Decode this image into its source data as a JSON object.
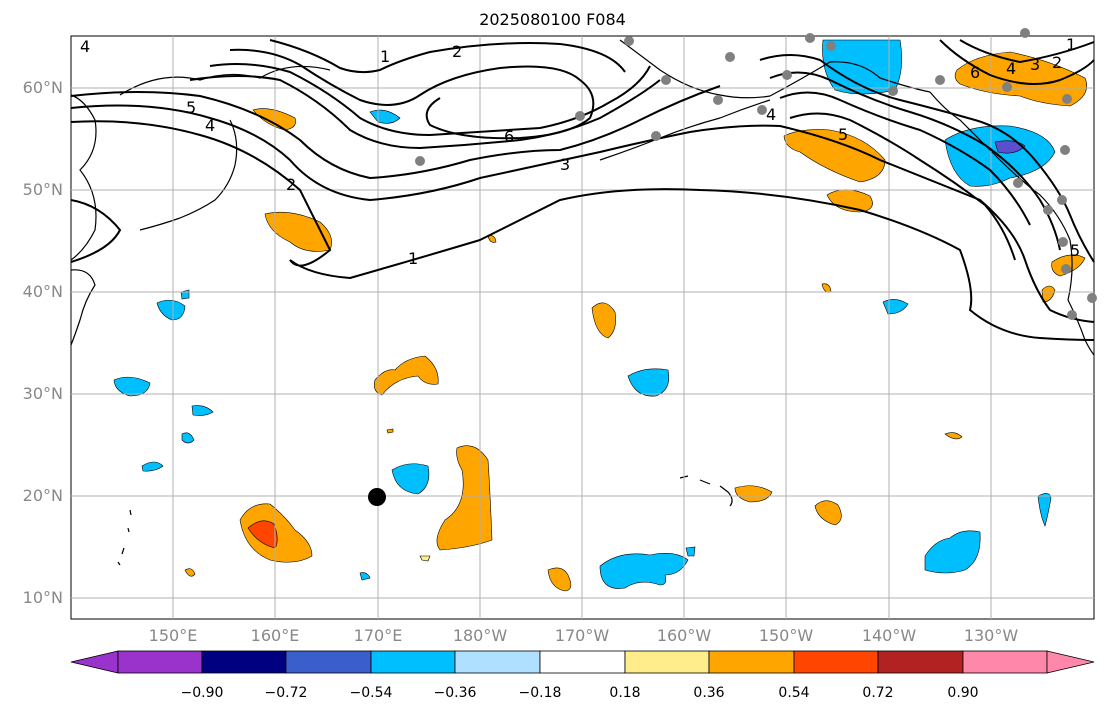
{
  "title": "2025080100 F084",
  "lat_labels": [
    "60°N",
    "50°N",
    "40°N",
    "30°N",
    "20°N",
    "10°N"
  ],
  "lon_labels": [
    "150°E",
    "160°E",
    "170°E",
    "180°W",
    "170°W",
    "160°W",
    "150°W",
    "140°W",
    "130°W"
  ],
  "contour_labels": [
    "1",
    "2",
    "3",
    "4",
    "5",
    "6"
  ],
  "colorbar": {
    "ticks": [
      "−0.90",
      "−0.72",
      "−0.54",
      "−0.36",
      "−0.18",
      "0.18",
      "0.36",
      "0.54",
      "0.72",
      "0.90"
    ],
    "colors": [
      "#9933cc",
      "#000080",
      "#3a5fcd",
      "#00bfff",
      "#b0e0ff",
      "#ffffff",
      "#ffec8b",
      "#ffa500",
      "#ff4500",
      "#b22222",
      "#ff88aa"
    ]
  },
  "colors": {
    "blue_anomaly": "#00bfff",
    "light_blue": "#b0e0ff",
    "orange_anomaly": "#ffa500",
    "red_anomaly": "#ff4500",
    "purple": "#5a4fcf",
    "grid": "#b0b0b0",
    "station_marker": "#808080"
  }
}
